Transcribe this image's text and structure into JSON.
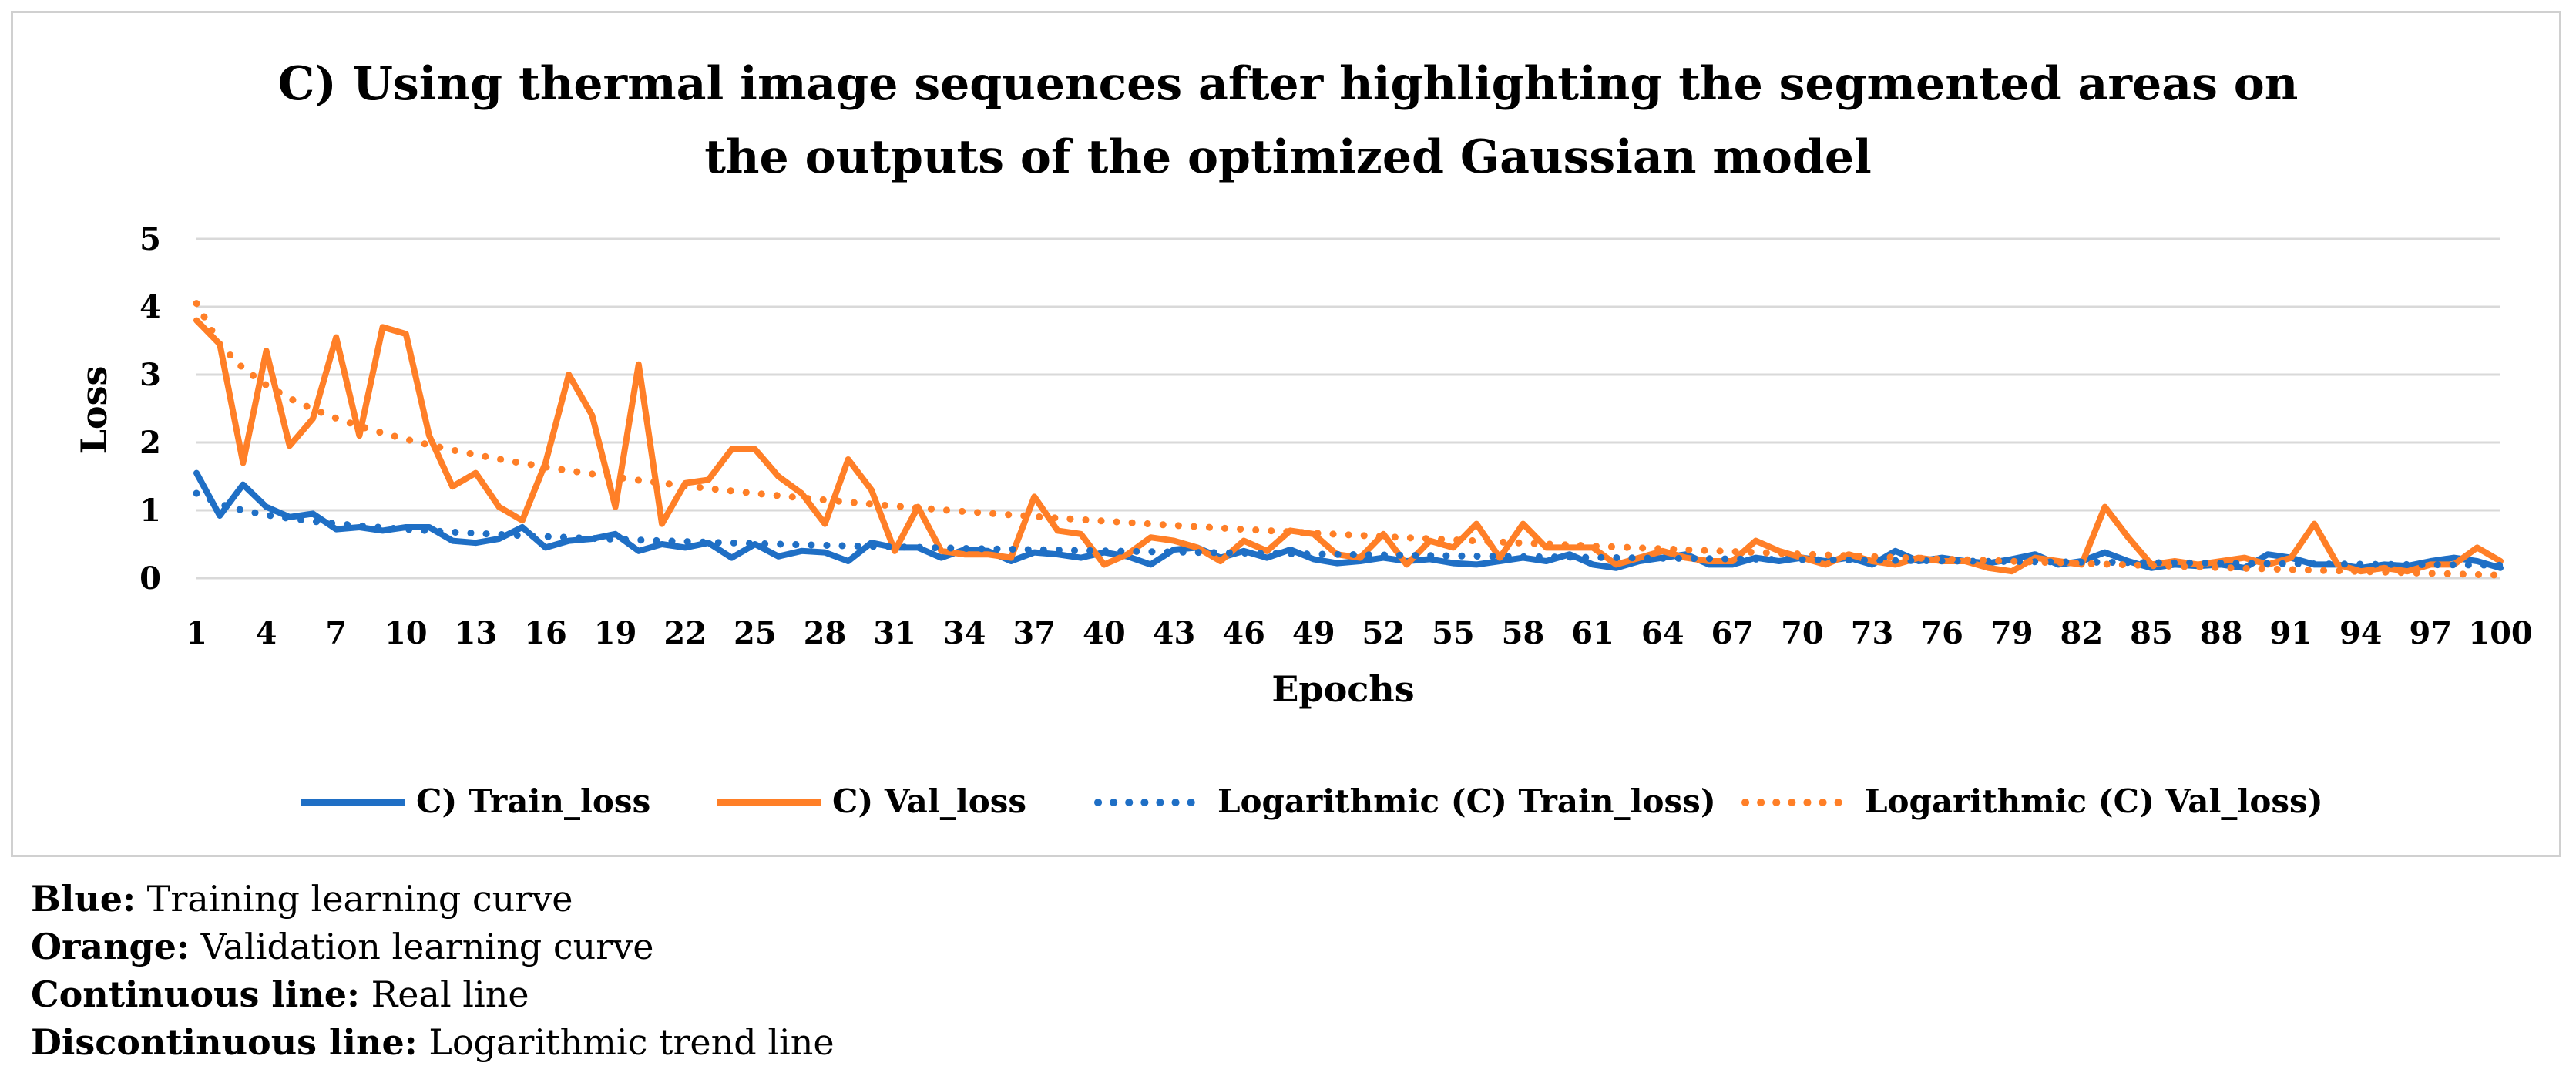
{
  "chart_data": {
    "type": "line",
    "title_line1": "C) Using thermal image sequences after highlighting the segmented areas on",
    "title_line2": "the outputs of the optimized Gaussian model",
    "xlabel": "Epochs",
    "ylabel": "Loss",
    "ylim": [
      0,
      5
    ],
    "yticks": [
      0,
      1,
      2,
      3,
      4,
      5
    ],
    "xlim": [
      1,
      100
    ],
    "xticks": [
      1,
      4,
      7,
      10,
      13,
      16,
      19,
      22,
      25,
      28,
      31,
      34,
      37,
      40,
      43,
      46,
      49,
      52,
      55,
      58,
      61,
      64,
      67,
      70,
      73,
      76,
      79,
      82,
      85,
      88,
      91,
      94,
      97,
      100
    ],
    "grid": true,
    "legend_position": "bottom",
    "series": [
      {
        "name": "C) Train_loss",
        "style": "solid",
        "color": "#1F6FC5",
        "values": [
          1.55,
          0.92,
          1.38,
          1.05,
          0.9,
          0.95,
          0.72,
          0.75,
          0.7,
          0.75,
          0.75,
          0.55,
          0.52,
          0.58,
          0.75,
          0.45,
          0.55,
          0.58,
          0.65,
          0.4,
          0.5,
          0.45,
          0.52,
          0.3,
          0.5,
          0.32,
          0.4,
          0.38,
          0.25,
          0.52,
          0.45,
          0.45,
          0.3,
          0.42,
          0.4,
          0.25,
          0.38,
          0.35,
          0.3,
          0.38,
          0.32,
          0.2,
          0.42,
          0.45,
          0.3,
          0.4,
          0.3,
          0.42,
          0.28,
          0.22,
          0.25,
          0.3,
          0.25,
          0.28,
          0.22,
          0.2,
          0.25,
          0.3,
          0.25,
          0.35,
          0.2,
          0.15,
          0.25,
          0.3,
          0.35,
          0.2,
          0.2,
          0.3,
          0.25,
          0.3,
          0.25,
          0.3,
          0.2,
          0.4,
          0.25,
          0.3,
          0.25,
          0.22,
          0.28,
          0.35,
          0.2,
          0.25,
          0.38,
          0.25,
          0.15,
          0.2,
          0.18,
          0.2,
          0.15,
          0.35,
          0.3,
          0.2,
          0.2,
          0.15,
          0.2,
          0.18,
          0.25,
          0.3,
          0.25,
          0.15
        ]
      },
      {
        "name": "C) Val_loss",
        "style": "solid",
        "color": "#FF7F27",
        "values": [
          3.8,
          3.45,
          1.7,
          3.35,
          1.95,
          2.35,
          3.55,
          2.1,
          3.7,
          3.6,
          2.1,
          1.35,
          1.55,
          1.05,
          0.85,
          1.7,
          3.0,
          2.4,
          1.05,
          3.15,
          0.8,
          1.4,
          1.45,
          1.9,
          1.9,
          1.5,
          1.25,
          0.8,
          1.75,
          1.3,
          0.4,
          1.05,
          0.4,
          0.35,
          0.35,
          0.3,
          1.2,
          0.7,
          0.65,
          0.2,
          0.35,
          0.6,
          0.55,
          0.45,
          0.25,
          0.55,
          0.4,
          0.7,
          0.65,
          0.35,
          0.3,
          0.65,
          0.2,
          0.55,
          0.45,
          0.8,
          0.3,
          0.8,
          0.45,
          0.45,
          0.45,
          0.2,
          0.3,
          0.4,
          0.3,
          0.25,
          0.25,
          0.55,
          0.4,
          0.3,
          0.2,
          0.35,
          0.25,
          0.2,
          0.3,
          0.25,
          0.25,
          0.15,
          0.1,
          0.3,
          0.25,
          0.2,
          1.05,
          0.6,
          0.2,
          0.25,
          0.2,
          0.25,
          0.3,
          0.2,
          0.3,
          0.8,
          0.2,
          0.1,
          0.15,
          0.1,
          0.2,
          0.2,
          0.45,
          0.25
        ]
      },
      {
        "name": "Logarithmic (C) Train_loss)",
        "style": "dotted",
        "color": "#1F6FC5",
        "trend_of": "C) Train_loss",
        "a": 1.25,
        "b": -0.23
      },
      {
        "name": "Logarithmic (C) Val_loss)",
        "style": "dotted",
        "color": "#FF7F27",
        "trend_of": "C) Val_loss",
        "a": 4.05,
        "b": -0.87
      }
    ]
  },
  "caption": [
    {
      "label": "Blue:",
      "text": "Training learning curve"
    },
    {
      "label": "Orange:",
      "text": "Validation learning curve"
    },
    {
      "label": "Continuous line:",
      "text": "Real line"
    },
    {
      "label": "Discontinuous line:",
      "text": "Logarithmic trend line"
    }
  ]
}
